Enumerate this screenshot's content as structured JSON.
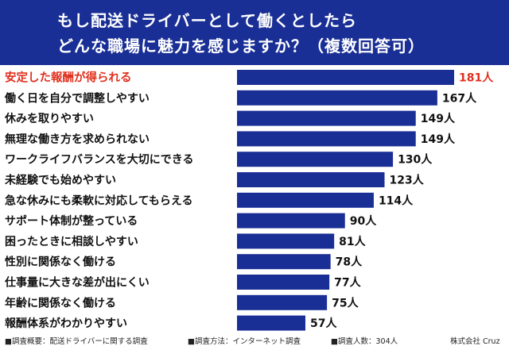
{
  "header": {
    "title_line1": "もし配送ドライバーとして働くとしたら",
    "title_line2": "どんな職場に魅力を感じますか？（複数回答可）",
    "background": "#1a2f95"
  },
  "footer": {
    "survey_summary": "■調査概要：配送ドライバーに関する調査",
    "survey_method": "■調査方法：インターネット調査",
    "survey_count": "■調査人数：304人",
    "company": "株式会社 Cruz"
  },
  "chart_data": {
    "type": "bar",
    "orientation": "horizontal",
    "unit": "人",
    "bar_color": "#1a2f95",
    "highlight_color": "#e0301e",
    "highlight_index": 0,
    "grid": false,
    "legend": "none",
    "categories": [
      "安定した報酬が得られる",
      "働く日を自分で調整しやすい",
      "休みを取りやすい",
      "無理な働き方を求められない",
      "ワークライフバランスを大切にできる",
      "未経験でも始めやすい",
      "急な休みにも柔軟に対応してもらえる",
      "サポート体制が整っている",
      "困ったときに相談しやすい",
      "性別に関係なく働ける",
      "仕事量に大きな差が出にくい",
      "年齢に関係なく働ける",
      "報酬体系がわかりやすい"
    ],
    "values": [
      181,
      167,
      149,
      149,
      130,
      123,
      114,
      90,
      81,
      78,
      77,
      75,
      57
    ],
    "value_labels": [
      "181人",
      "167人",
      "149人",
      "149人",
      "130人",
      "123人",
      "114人",
      "90人",
      "81人",
      "78人",
      "77人",
      "75人",
      "57人"
    ],
    "xlim": [
      0,
      181
    ]
  }
}
